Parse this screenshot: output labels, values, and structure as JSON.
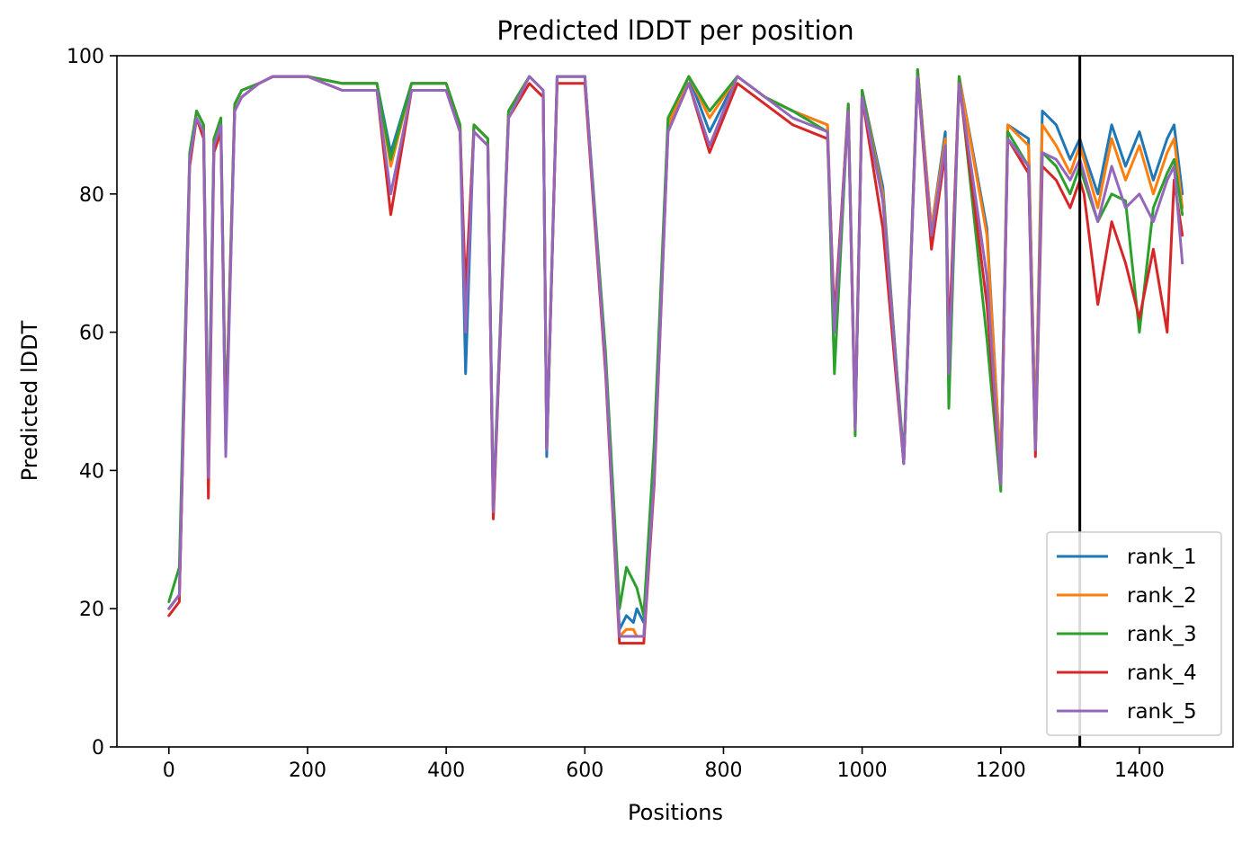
{
  "chart_data": {
    "type": "line",
    "title": "Predicted lDDT per position",
    "xlabel": "Positions",
    "ylabel": "Predicted lDDT",
    "xlim": [
      -75,
      1535
    ],
    "ylim": [
      0,
      100
    ],
    "xticks": [
      0,
      200,
      400,
      600,
      800,
      1000,
      1200,
      1400
    ],
    "yticks": [
      0,
      20,
      40,
      60,
      80,
      100
    ],
    "grid": false,
    "legend_position": "bottom-right",
    "vertical_line": {
      "x": 1314,
      "color": "#000000"
    },
    "series": [
      {
        "name": "rank_1",
        "color": "#1f77b4",
        "x": [
          0,
          15,
          30,
          40,
          50,
          57,
          65,
          75,
          82,
          95,
          105,
          130,
          150,
          200,
          250,
          300,
          320,
          350,
          400,
          420,
          428,
          440,
          460,
          468,
          490,
          520,
          540,
          545,
          560,
          600,
          630,
          650,
          660,
          670,
          675,
          685,
          700,
          720,
          750,
          780,
          820,
          860,
          900,
          950,
          960,
          980,
          990,
          1000,
          1030,
          1060,
          1080,
          1100,
          1120,
          1125,
          1140,
          1180,
          1200,
          1210,
          1240,
          1250,
          1260,
          1280,
          1300,
          1314,
          1320,
          1340,
          1360,
          1380,
          1400,
          1420,
          1440,
          1450,
          1462
        ],
        "y": [
          20,
          22,
          85,
          92,
          90,
          42,
          88,
          90,
          45,
          93,
          95,
          96,
          97,
          97,
          96,
          96,
          86,
          96,
          96,
          90,
          54,
          90,
          88,
          34,
          92,
          97,
          95,
          42,
          97,
          97,
          55,
          17,
          19,
          18,
          20,
          18,
          40,
          90,
          97,
          89,
          97,
          94,
          92,
          90,
          60,
          93,
          47,
          95,
          81,
          41,
          98,
          75,
          89,
          55,
          97,
          75,
          40,
          90,
          88,
          45,
          92,
          90,
          85,
          88,
          86,
          80,
          90,
          84,
          89,
          82,
          88,
          90,
          80
        ]
      },
      {
        "name": "rank_2",
        "color": "#ff7f0e",
        "x": [
          0,
          15,
          30,
          40,
          50,
          57,
          65,
          75,
          82,
          95,
          105,
          130,
          150,
          200,
          250,
          300,
          320,
          350,
          400,
          420,
          428,
          440,
          460,
          468,
          490,
          520,
          540,
          545,
          560,
          600,
          630,
          650,
          660,
          670,
          675,
          685,
          700,
          720,
          750,
          780,
          820,
          860,
          900,
          950,
          960,
          980,
          990,
          1000,
          1030,
          1060,
          1080,
          1100,
          1120,
          1125,
          1140,
          1180,
          1200,
          1210,
          1240,
          1250,
          1260,
          1280,
          1300,
          1314,
          1320,
          1340,
          1360,
          1380,
          1400,
          1420,
          1440,
          1450,
          1462
        ],
        "y": [
          20,
          22,
          85,
          92,
          90,
          40,
          88,
          90,
          45,
          93,
          95,
          96,
          97,
          97,
          96,
          96,
          84,
          96,
          96,
          90,
          64,
          90,
          88,
          33,
          92,
          97,
          95,
          44,
          97,
          97,
          55,
          16,
          17,
          17,
          16,
          16,
          40,
          90,
          97,
          91,
          97,
          94,
          92,
          90,
          60,
          93,
          47,
          95,
          80,
          41,
          98,
          75,
          88,
          56,
          97,
          74,
          40,
          90,
          87,
          45,
          90,
          87,
          83,
          87,
          85,
          78,
          88,
          82,
          87,
          80,
          86,
          88,
          78
        ]
      },
      {
        "name": "rank_3",
        "color": "#2ca02c",
        "x": [
          0,
          15,
          30,
          40,
          50,
          57,
          65,
          75,
          82,
          95,
          105,
          130,
          150,
          200,
          250,
          300,
          320,
          350,
          400,
          420,
          428,
          440,
          460,
          468,
          490,
          520,
          540,
          545,
          560,
          600,
          630,
          650,
          660,
          670,
          675,
          685,
          700,
          720,
          750,
          780,
          820,
          860,
          900,
          950,
          960,
          980,
          990,
          1000,
          1030,
          1060,
          1080,
          1100,
          1120,
          1125,
          1140,
          1180,
          1200,
          1210,
          1240,
          1250,
          1260,
          1280,
          1300,
          1314,
          1320,
          1340,
          1360,
          1380,
          1400,
          1420,
          1440,
          1450,
          1462
        ],
        "y": [
          21,
          26,
          86,
          92,
          90,
          42,
          88,
          91,
          46,
          93,
          95,
          96,
          97,
          97,
          96,
          96,
          85,
          96,
          96,
          90,
          62,
          90,
          88,
          35,
          92,
          97,
          95,
          43,
          97,
          97,
          57,
          20,
          26,
          24,
          23,
          19,
          44,
          91,
          97,
          92,
          97,
          94,
          92,
          89,
          54,
          93,
          45,
          95,
          79,
          42,
          98,
          73,
          87,
          49,
          97,
          59,
          37,
          89,
          84,
          43,
          86,
          84,
          80,
          84,
          82,
          76,
          80,
          79,
          60,
          78,
          83,
          85,
          77
        ]
      },
      {
        "name": "rank_4",
        "color": "#d62728",
        "x": [
          0,
          15,
          30,
          40,
          50,
          57,
          65,
          75,
          82,
          95,
          105,
          130,
          150,
          200,
          250,
          300,
          320,
          350,
          400,
          420,
          428,
          440,
          460,
          468,
          490,
          520,
          540,
          545,
          560,
          600,
          630,
          650,
          660,
          670,
          675,
          685,
          700,
          720,
          750,
          780,
          820,
          860,
          900,
          950,
          960,
          980,
          990,
          1000,
          1030,
          1060,
          1080,
          1100,
          1120,
          1125,
          1140,
          1180,
          1200,
          1210,
          1240,
          1250,
          1260,
          1280,
          1300,
          1314,
          1320,
          1340,
          1360,
          1380,
          1400,
          1420,
          1440,
          1450,
          1462
        ],
        "y": [
          19,
          21,
          84,
          91,
          88,
          36,
          86,
          89,
          44,
          92,
          94,
          96,
          97,
          97,
          95,
          95,
          77,
          95,
          95,
          89,
          66,
          89,
          87,
          33,
          91,
          96,
          94,
          43,
          96,
          96,
          54,
          15,
          15,
          15,
          15,
          15,
          38,
          89,
          96,
          86,
          96,
          93,
          90,
          88,
          62,
          92,
          46,
          94,
          75,
          41,
          97,
          72,
          86,
          58,
          96,
          64,
          38,
          88,
          83,
          42,
          84,
          82,
          78,
          82,
          80,
          64,
          76,
          70,
          62,
          72,
          60,
          82,
          74
        ]
      },
      {
        "name": "rank_5",
        "color": "#9467bd",
        "x": [
          0,
          15,
          30,
          40,
          50,
          57,
          65,
          75,
          82,
          95,
          105,
          130,
          150,
          200,
          250,
          300,
          320,
          350,
          400,
          420,
          428,
          440,
          460,
          468,
          490,
          520,
          540,
          545,
          560,
          600,
          630,
          650,
          660,
          670,
          675,
          685,
          700,
          720,
          750,
          780,
          820,
          860,
          900,
          950,
          960,
          980,
          990,
          1000,
          1030,
          1060,
          1080,
          1100,
          1120,
          1125,
          1140,
          1180,
          1200,
          1210,
          1240,
          1250,
          1260,
          1280,
          1300,
          1314,
          1320,
          1340,
          1360,
          1380,
          1400,
          1420,
          1440,
          1450,
          1462
        ],
        "y": [
          20,
          22,
          85,
          91,
          89,
          39,
          87,
          90,
          42,
          92,
          94,
          96,
          97,
          97,
          95,
          95,
          80,
          95,
          95,
          89,
          60,
          89,
          87,
          34,
          91,
          97,
          95,
          43,
          97,
          97,
          55,
          16,
          16,
          16,
          16,
          16,
          39,
          89,
          96,
          87,
          97,
          94,
          91,
          89,
          60,
          92,
          46,
          94,
          79,
          41,
          97,
          74,
          87,
          54,
          96,
          68,
          38,
          88,
          84,
          43,
          86,
          85,
          82,
          85,
          83,
          76,
          84,
          78,
          80,
          76,
          82,
          84,
          70
        ]
      }
    ]
  }
}
